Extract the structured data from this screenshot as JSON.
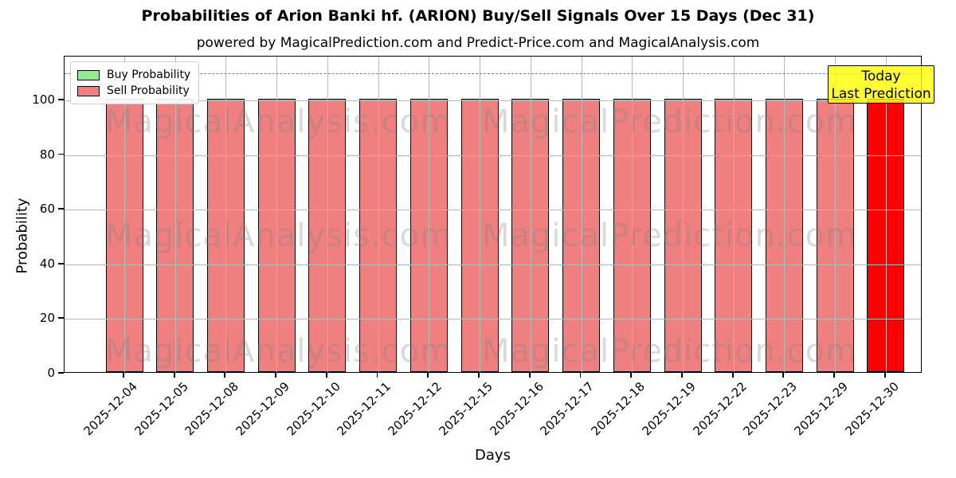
{
  "title": "Probabilities of Arion Banki hf. (ARION) Buy/Sell Signals Over 15 Days (Dec 31)",
  "subtitle": "powered by MagicalPrediction.com and Predict-Price.com and MagicalAnalysis.com",
  "chart_data": {
    "type": "bar",
    "title": "Probabilities of Arion Banki hf. (ARION) Buy/Sell Signals Over 15 Days (Dec 31)",
    "subtitle": "powered by MagicalPrediction.com and Predict-Price.com and MagicalAnalysis.com",
    "xlabel": "Days",
    "ylabel": "Probability",
    "ylim": [
      0,
      116
    ],
    "yticks": [
      0,
      20,
      40,
      60,
      80,
      100
    ],
    "grid": true,
    "legend_position": "upper left",
    "dashed_line_y": 110,
    "categories": [
      "2025-12-04",
      "2025-12-05",
      "2025-12-08",
      "2025-12-09",
      "2025-12-10",
      "2025-12-11",
      "2025-12-12",
      "2025-12-15",
      "2025-12-16",
      "2025-12-17",
      "2025-12-18",
      "2025-12-19",
      "2025-12-22",
      "2025-12-23",
      "2025-12-29",
      "2025-12-30"
    ],
    "series": [
      {
        "name": "Buy Probability",
        "color": "#90ee90",
        "values": [
          0,
          0,
          0,
          0,
          0,
          0,
          0,
          0,
          0,
          0,
          0,
          0,
          0,
          0,
          0,
          0
        ]
      },
      {
        "name": "Sell Probability",
        "color": "#f08080",
        "values": [
          100,
          100,
          100,
          100,
          100,
          100,
          100,
          100,
          100,
          100,
          100,
          100,
          100,
          100,
          100,
          100
        ]
      }
    ],
    "highlight": {
      "category": "2025-12-30",
      "color": "#ff0000"
    },
    "colors": {
      "grid": "#b8b8b8",
      "dashed_line": "#7f7f7f",
      "bar_edge": "#000000"
    }
  },
  "annotation": {
    "line1": "Today",
    "line2": "Last Prediction",
    "bg_color": "#ffff00"
  },
  "watermarks": {
    "left_text": "MagicalAnalysis.com",
    "right_text": "MagicalPrediction.com"
  }
}
